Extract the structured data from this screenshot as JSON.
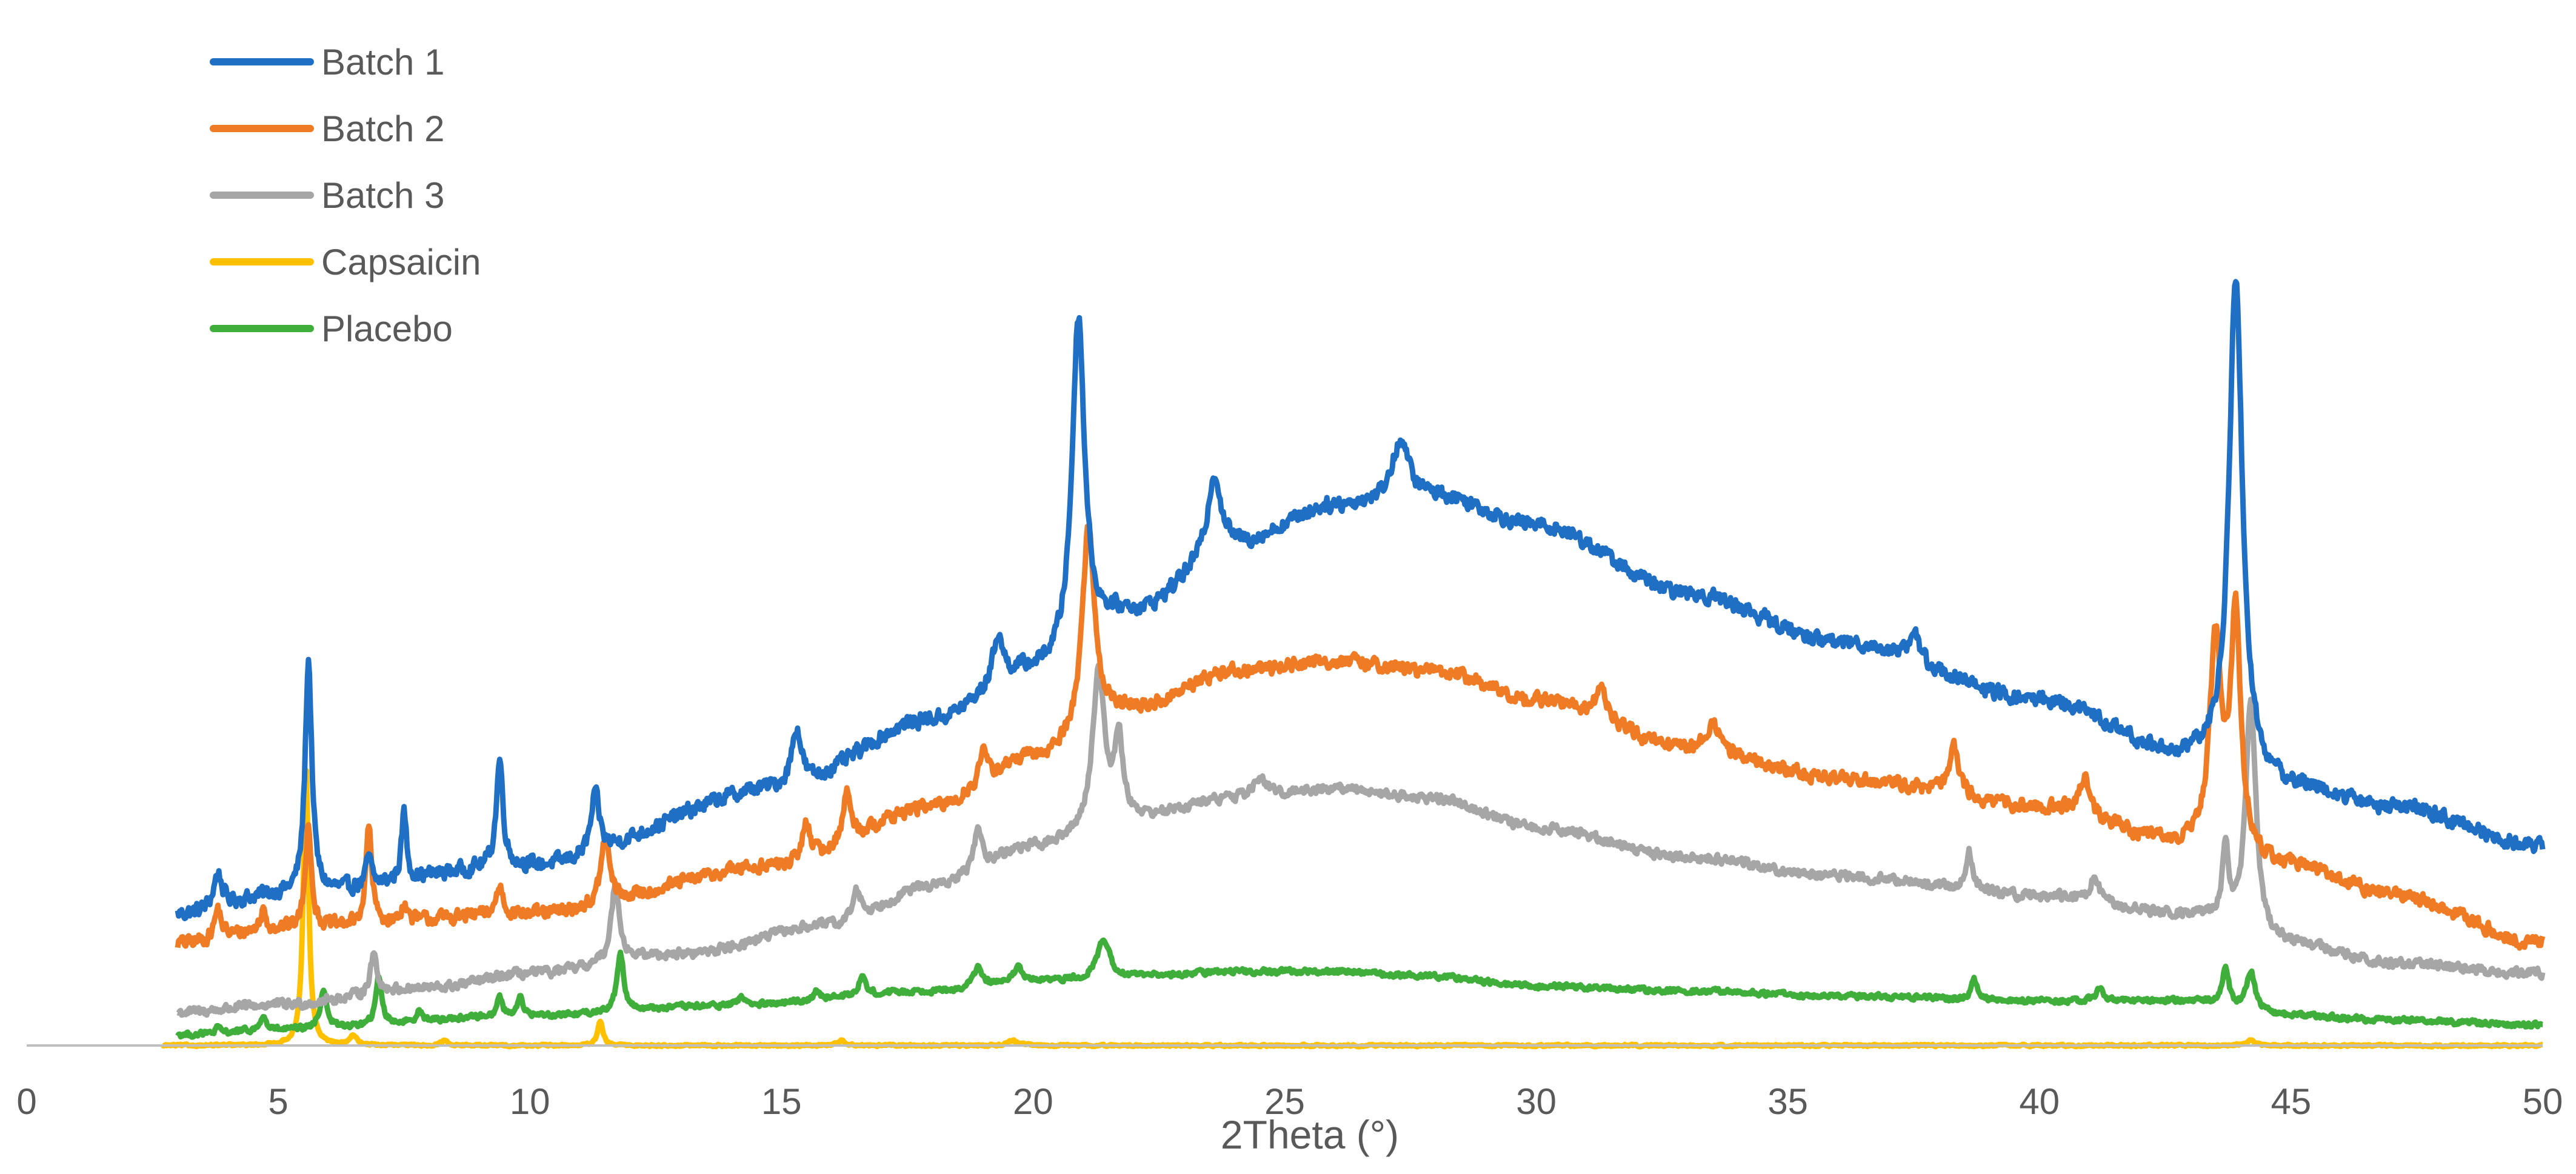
{
  "chart_data": {
    "type": "line",
    "title": "",
    "xlabel": "2Theta (°)",
    "ylabel": "",
    "xlim": [
      0,
      50
    ],
    "x_ticks": [
      "0",
      "5",
      "10",
      "15",
      "20",
      "25",
      "30",
      "35",
      "40",
      "45",
      "50"
    ],
    "grid": false,
    "legend_position": "top-left",
    "series": [
      {
        "name": "Batch 1",
        "color": "#1f6fc5",
        "offset": 0.135,
        "noise": 0.011,
        "baseline": [
          [
            3,
            0.0
          ],
          [
            5,
            0.02
          ],
          [
            10,
            0.05
          ],
          [
            15,
            0.13
          ],
          [
            18,
            0.2
          ],
          [
            20,
            0.25
          ],
          [
            22,
            0.31
          ],
          [
            24,
            0.38
          ],
          [
            26,
            0.42
          ],
          [
            28,
            0.43
          ],
          [
            30,
            0.4
          ],
          [
            33,
            0.33
          ],
          [
            36,
            0.28
          ],
          [
            40,
            0.22
          ],
          [
            43,
            0.16
          ],
          [
            45,
            0.13
          ],
          [
            47,
            0.11
          ],
          [
            50,
            0.07
          ]
        ],
        "peaks": [
          [
            3.8,
            0.035,
            0.1
          ],
          [
            5.6,
            0.24,
            0.08
          ],
          [
            6.8,
            0.03,
            0.06
          ],
          [
            7.5,
            0.07,
            0.06
          ],
          [
            9.4,
            0.11,
            0.08
          ],
          [
            11.3,
            0.06,
            0.1
          ],
          [
            15.3,
            0.06,
            0.12
          ],
          [
            19.3,
            0.05,
            0.12
          ],
          [
            20.9,
            0.34,
            0.15
          ],
          [
            23.6,
            0.08,
            0.15
          ],
          [
            27.3,
            0.06,
            0.2
          ],
          [
            37.5,
            0.03,
            0.12
          ],
          [
            43.9,
            0.51,
            0.16
          ]
        ]
      },
      {
        "name": "Batch 2",
        "color": "#f07b25",
        "offset": 0.105,
        "noise": 0.01,
        "baseline": [
          [
            3,
            0.0
          ],
          [
            5,
            0.015
          ],
          [
            10,
            0.03
          ],
          [
            15,
            0.08
          ],
          [
            18,
            0.14
          ],
          [
            20,
            0.19
          ],
          [
            22,
            0.24
          ],
          [
            24,
            0.28
          ],
          [
            26,
            0.29
          ],
          [
            28,
            0.28
          ],
          [
            30,
            0.25
          ],
          [
            33,
            0.2
          ],
          [
            36,
            0.17
          ],
          [
            40,
            0.14
          ],
          [
            43,
            0.1
          ],
          [
            45,
            0.08
          ],
          [
            47,
            0.05
          ],
          [
            50,
            0.0
          ]
        ],
        "peaks": [
          [
            3.8,
            0.03,
            0.08
          ],
          [
            4.7,
            0.02,
            0.06
          ],
          [
            5.6,
            0.11,
            0.07
          ],
          [
            6.8,
            0.1,
            0.07
          ],
          [
            7.5,
            0.02,
            0.06
          ],
          [
            9.4,
            0.03,
            0.08
          ],
          [
            11.5,
            0.07,
            0.1
          ],
          [
            15.5,
            0.04,
            0.1
          ],
          [
            16.3,
            0.05,
            0.1
          ],
          [
            19.0,
            0.03,
            0.1
          ],
          [
            21.1,
            0.21,
            0.15
          ],
          [
            31.3,
            0.03,
            0.15
          ],
          [
            33.5,
            0.03,
            0.15
          ],
          [
            38.3,
            0.05,
            0.12
          ],
          [
            40.9,
            0.04,
            0.12
          ],
          [
            43.5,
            0.21,
            0.14
          ],
          [
            43.9,
            0.24,
            0.12
          ]
        ]
      },
      {
        "name": "Batch 3",
        "color": "#a6a6a6",
        "offset": 0.034,
        "noise": 0.007,
        "baseline": [
          [
            3,
            0.0
          ],
          [
            5,
            0.008
          ],
          [
            8,
            0.025
          ],
          [
            10,
            0.04
          ],
          [
            13,
            0.06
          ],
          [
            16,
            0.09
          ],
          [
            18,
            0.13
          ],
          [
            20,
            0.17
          ],
          [
            22,
            0.2
          ],
          [
            24,
            0.22
          ],
          [
            26,
            0.23
          ],
          [
            28,
            0.22
          ],
          [
            30,
            0.19
          ],
          [
            33,
            0.16
          ],
          [
            36,
            0.14
          ],
          [
            40,
            0.12
          ],
          [
            43,
            0.1
          ],
          [
            45,
            0.07
          ],
          [
            47,
            0.05
          ],
          [
            50,
            0.04
          ]
        ],
        "peaks": [
          [
            6.9,
            0.04,
            0.08
          ],
          [
            11.7,
            0.08,
            0.1
          ],
          [
            16.5,
            0.03,
            0.1
          ],
          [
            18.9,
            0.04,
            0.1
          ],
          [
            21.3,
            0.16,
            0.14
          ],
          [
            21.7,
            0.08,
            0.1
          ],
          [
            24.5,
            0.02,
            0.15
          ],
          [
            38.6,
            0.04,
            0.08
          ],
          [
            41.1,
            0.03,
            0.08
          ],
          [
            43.7,
            0.08,
            0.07
          ],
          [
            44.2,
            0.24,
            0.12
          ]
        ]
      },
      {
        "name": "Capsaicin",
        "color": "#ffc000",
        "offset": 0.0,
        "noise": 0.0015,
        "baseline": [
          [
            2.7,
            0.0
          ],
          [
            50,
            0.0
          ]
        ],
        "peaks": [
          [
            5.55,
            0.29,
            0.06
          ],
          [
            6.5,
            0.01,
            0.08
          ],
          [
            8.3,
            0.005,
            0.08
          ],
          [
            11.4,
            0.025,
            0.06
          ],
          [
            16.2,
            0.005,
            0.1
          ],
          [
            19.6,
            0.005,
            0.12
          ],
          [
            44.2,
            0.005,
            0.1
          ]
        ]
      },
      {
        "name": "Placebo",
        "color": "#3fae3a",
        "offset": 0.011,
        "noise": 0.004,
        "baseline": [
          [
            3,
            0.0
          ],
          [
            5,
            0.005
          ],
          [
            10,
            0.02
          ],
          [
            14,
            0.03
          ],
          [
            18,
            0.045
          ],
          [
            20,
            0.055
          ],
          [
            22,
            0.06
          ],
          [
            24,
            0.065
          ],
          [
            26,
            0.065
          ],
          [
            28,
            0.06
          ],
          [
            30,
            0.05
          ],
          [
            33,
            0.045
          ],
          [
            36,
            0.04
          ],
          [
            40,
            0.035
          ],
          [
            43,
            0.035
          ],
          [
            45,
            0.02
          ],
          [
            47,
            0.015
          ],
          [
            50,
            0.01
          ]
        ],
        "peaks": [
          [
            3.8,
            0.005,
            0.06
          ],
          [
            4.7,
            0.015,
            0.06
          ],
          [
            5.9,
            0.04,
            0.08
          ],
          [
            7.0,
            0.05,
            0.07
          ],
          [
            7.8,
            0.012,
            0.06
          ],
          [
            9.4,
            0.02,
            0.06
          ],
          [
            9.8,
            0.02,
            0.06
          ],
          [
            11.8,
            0.06,
            0.08
          ],
          [
            14.2,
            0.01,
            0.08
          ],
          [
            15.7,
            0.01,
            0.08
          ],
          [
            16.6,
            0.02,
            0.08
          ],
          [
            18.9,
            0.02,
            0.1
          ],
          [
            19.7,
            0.015,
            0.1
          ],
          [
            21.4,
            0.04,
            0.14
          ],
          [
            38.7,
            0.02,
            0.08
          ],
          [
            41.2,
            0.015,
            0.08
          ],
          [
            43.7,
            0.04,
            0.07
          ],
          [
            44.2,
            0.04,
            0.1
          ]
        ]
      }
    ]
  }
}
